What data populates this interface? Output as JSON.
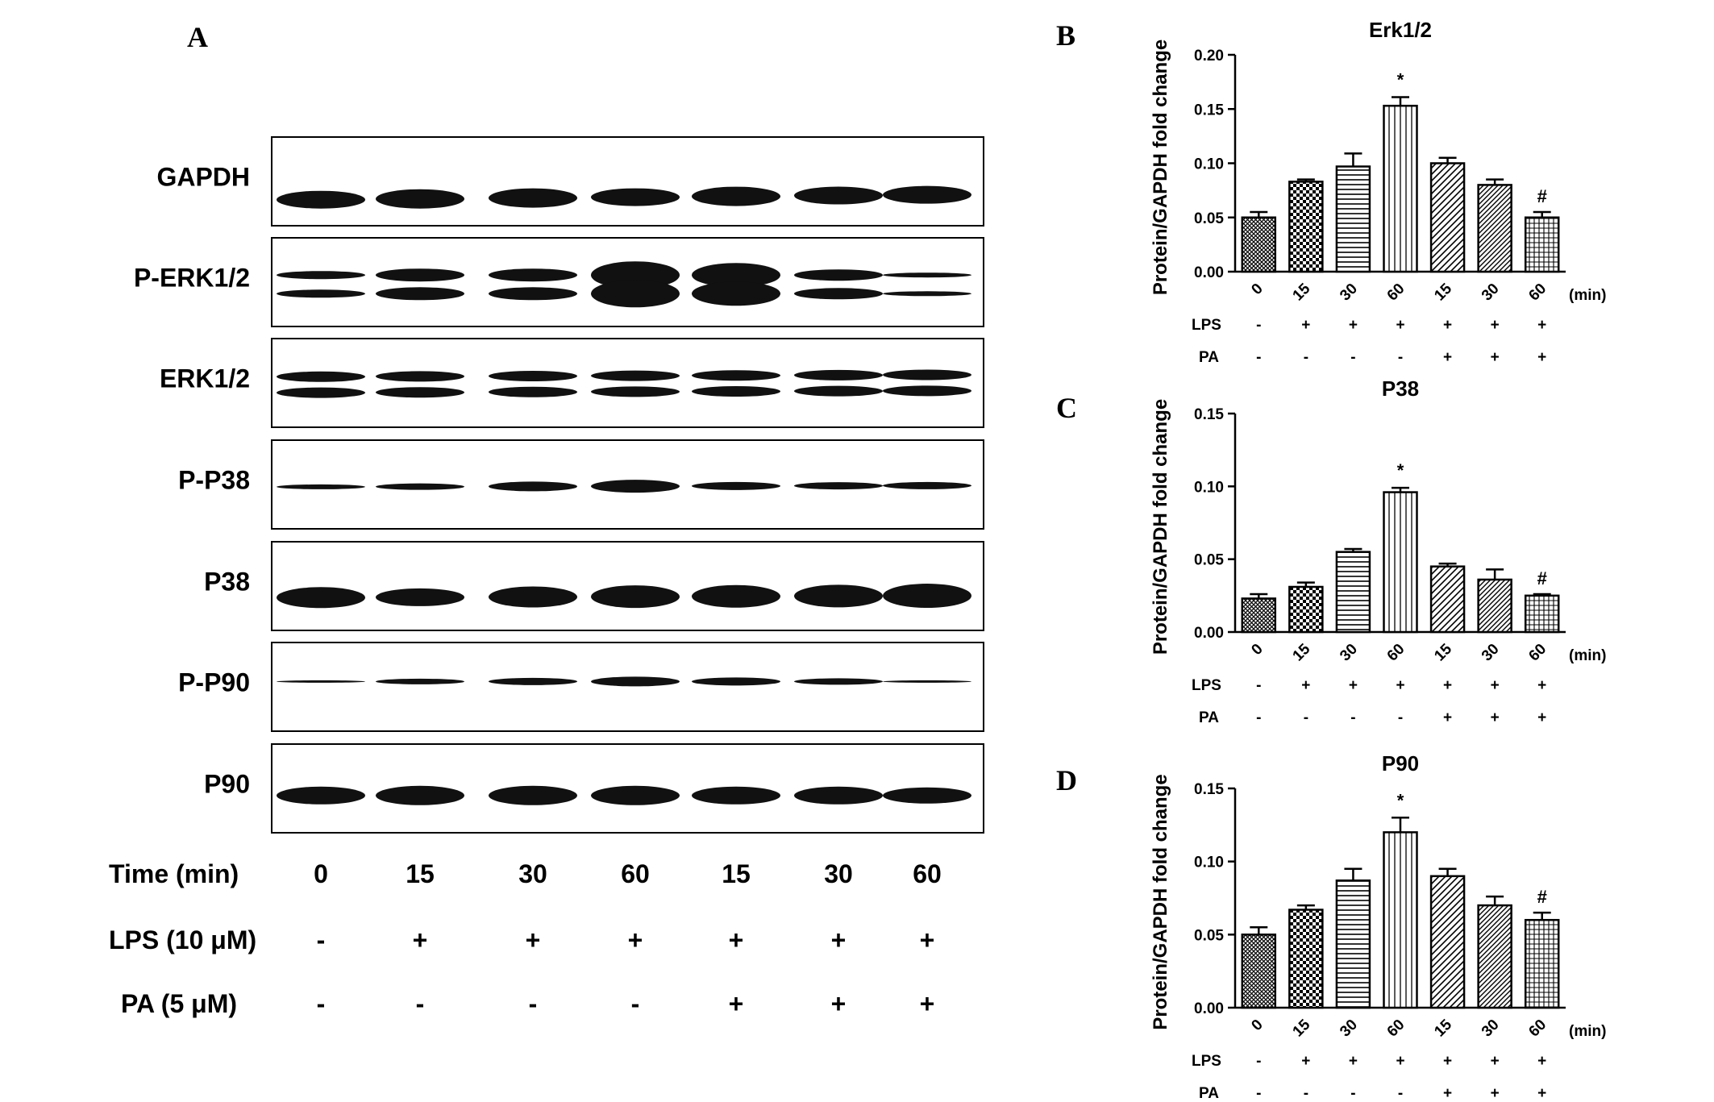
{
  "panel_a": {
    "letter": "A",
    "blots": [
      "GAPDH",
      "P-ERK1/2",
      "ERK1/2",
      "P-P38",
      "P38",
      "P-P90",
      "P90"
    ],
    "time_label": "Time (min)",
    "times": [
      "0",
      "15",
      "30",
      "60",
      "15",
      "30",
      "60"
    ],
    "lps_label": "LPS (10 μM)",
    "lps": [
      "-",
      "+",
      "+",
      "+",
      "+",
      "+",
      "+"
    ],
    "pa_label": "PA (5 μM)",
    "pa": [
      "-",
      "-",
      "-",
      "-",
      "+",
      "+",
      "+"
    ]
  },
  "panel_letters": [
    "B",
    "C",
    "D"
  ],
  "chart_data": [
    {
      "type": "bar",
      "title": "Erk1/2",
      "ylabel": "Protein/GAPDH fold change",
      "categories": [
        "0",
        "15",
        "30",
        "60",
        "15",
        "30",
        "60"
      ],
      "x_unit": "(min)",
      "values": [
        0.05,
        0.083,
        0.097,
        0.153,
        0.1,
        0.08,
        0.05
      ],
      "errors": [
        0.005,
        0.002,
        0.012,
        0.008,
        0.005,
        0.005,
        0.005
      ],
      "ylim": [
        0,
        0.2
      ],
      "yticks": [
        "0.00",
        "0.05",
        "0.10",
        "0.15",
        "0.20"
      ],
      "annotations": [
        "",
        "",
        "",
        "*",
        "",
        "",
        "#"
      ],
      "lps_label": "LPS",
      "lps": [
        "-",
        "+",
        "+",
        "+",
        "+",
        "+",
        "+"
      ],
      "pa_label": "PA",
      "pa": [
        "-",
        "-",
        "-",
        "-",
        "+",
        "+",
        "+"
      ]
    },
    {
      "type": "bar",
      "title": "P38",
      "ylabel": "Protein/GAPDH fold change",
      "categories": [
        "0",
        "15",
        "30",
        "60",
        "15",
        "30",
        "60"
      ],
      "x_unit": "(min)",
      "values": [
        0.023,
        0.031,
        0.055,
        0.096,
        0.045,
        0.036,
        0.025
      ],
      "errors": [
        0.003,
        0.003,
        0.002,
        0.003,
        0.002,
        0.007,
        0.001
      ],
      "ylim": [
        0,
        0.15
      ],
      "yticks": [
        "0.00",
        "0.05",
        "0.10",
        "0.15"
      ],
      "annotations": [
        "",
        "",
        "",
        "*",
        "",
        "",
        "#"
      ],
      "lps_label": "LPS",
      "lps": [
        "-",
        "+",
        "+",
        "+",
        "+",
        "+",
        "+"
      ],
      "pa_label": "PA",
      "pa": [
        "-",
        "-",
        "-",
        "-",
        "+",
        "+",
        "+"
      ]
    },
    {
      "type": "bar",
      "title": "P90",
      "ylabel": "Protein/GAPDH fold change",
      "categories": [
        "0",
        "15",
        "30",
        "60",
        "15",
        "30",
        "60"
      ],
      "x_unit": "(min)",
      "values": [
        0.05,
        0.067,
        0.087,
        0.12,
        0.09,
        0.07,
        0.06
      ],
      "errors": [
        0.005,
        0.003,
        0.008,
        0.01,
        0.005,
        0.006,
        0.005
      ],
      "ylim": [
        0,
        0.15
      ],
      "yticks": [
        "0.00",
        "0.05",
        "0.10",
        "0.15"
      ],
      "annotations": [
        "",
        "",
        "",
        "*",
        "",
        "",
        "#"
      ],
      "lps_label": "LPS",
      "lps": [
        "-",
        "+",
        "+",
        "+",
        "+",
        "+",
        "+"
      ],
      "pa_label": "PA",
      "pa": [
        "-",
        "-",
        "-",
        "-",
        "+",
        "+",
        "+"
      ]
    }
  ]
}
